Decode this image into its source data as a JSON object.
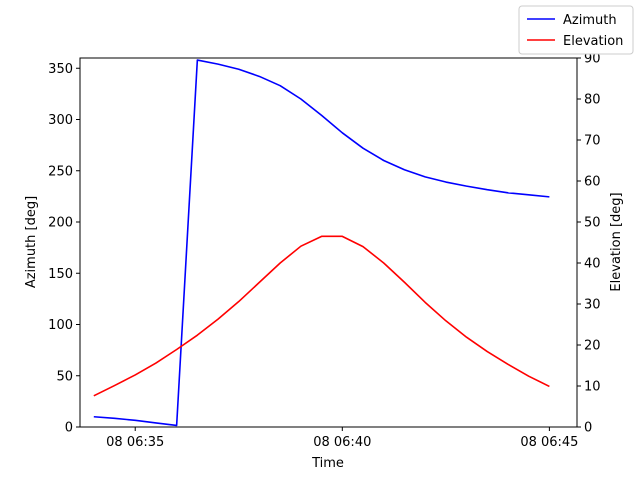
{
  "chart_data": {
    "type": "line",
    "xlabel": "Time",
    "ylabel_left": "Azimuth [deg]",
    "ylabel_right": "Elevation [deg]",
    "x_ticks": [
      "08 06:35",
      "08 06:40",
      "08 06:45"
    ],
    "x_tick_minutes": [
      35,
      40,
      45
    ],
    "xlim": [
      33.6667,
      45.6667
    ],
    "ylim_left": [
      0,
      360
    ],
    "ylim_right": [
      0,
      90
    ],
    "y_ticks_left": [
      0,
      50,
      100,
      150,
      200,
      250,
      300,
      350
    ],
    "y_ticks_right": [
      0,
      10,
      20,
      30,
      40,
      50,
      60,
      70,
      80,
      90
    ],
    "legend_position": "top-right",
    "grid": false,
    "series": [
      {
        "name": "Azimuth",
        "color": "#0000ff",
        "axis": "left",
        "x": [
          34.0,
          34.5,
          35.0,
          35.5,
          36.0,
          36.5,
          37.0,
          37.5,
          38.0,
          38.5,
          39.0,
          39.5,
          40.0,
          40.5,
          41.0,
          41.5,
          42.0,
          42.5,
          43.0,
          43.5,
          44.0,
          44.5,
          45.0
        ],
        "values": [
          10,
          8.5,
          6.5,
          4,
          1.5,
          358,
          354,
          349,
          342,
          333,
          320,
          304,
          287,
          272,
          260,
          251,
          244,
          239,
          235,
          231.5,
          228.5,
          226.5,
          224.5
        ]
      },
      {
        "name": "Elevation",
        "color": "#ff0000",
        "axis": "right",
        "x": [
          34.0,
          34.5,
          35.0,
          35.5,
          36.0,
          36.5,
          37.0,
          37.5,
          38.0,
          38.5,
          39.0,
          39.5,
          40.0,
          40.5,
          41.0,
          41.5,
          42.0,
          42.5,
          43.0,
          43.5,
          44.0,
          44.5,
          45.0
        ],
        "values": [
          7.6,
          10.1,
          12.7,
          15.6,
          18.9,
          22.4,
          26.3,
          30.6,
          35.3,
          40.0,
          44.1,
          46.5,
          46.5,
          44.0,
          40.0,
          35.3,
          30.4,
          25.9,
          21.9,
          18.4,
          15.3,
          12.4,
          9.9
        ]
      }
    ]
  }
}
